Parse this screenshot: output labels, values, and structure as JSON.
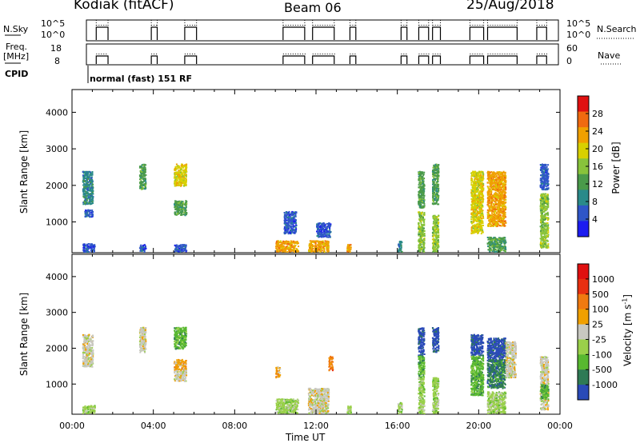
{
  "header": {
    "radar": "Kodiak (fitACF)",
    "beam": "Beam 06",
    "date": "25/Aug/2018"
  },
  "strips": {
    "nsky": {
      "label": "N.Sky",
      "ticks_left": [
        "10^5",
        "10^0"
      ],
      "ticks_right": [
        "10^5",
        "10^0"
      ],
      "right_label": "N.Search"
    },
    "freq": {
      "label_line1": "Freq.",
      "label_line2": "[MHz]",
      "ticks_left": [
        "18",
        "8"
      ],
      "ticks_right": [
        "60",
        "0"
      ],
      "right_label": "Nave"
    },
    "cpid": {
      "label": "CPID",
      "value": "normal (fast) 151 RF"
    }
  },
  "chart_data": [
    {
      "type": "heatmap",
      "name": "power",
      "ylabel": "Slant Range [km]",
      "yticks": [
        "1000",
        "2000",
        "3000",
        "4000"
      ],
      "ylim": [
        180,
        4600
      ],
      "xlim": [
        0,
        24
      ],
      "colorbar": {
        "title": "Power [dB]",
        "ticks": [
          "4",
          "8",
          "12",
          "16",
          "20",
          "24",
          "28"
        ],
        "range": [
          0,
          32
        ],
        "colors": [
          "#1c1cf0",
          "#2f56c8",
          "#2a8a8a",
          "#4a9a4a",
          "#88c33b",
          "#d8d000",
          "#f0a000",
          "#f06a10",
          "#e01010"
        ]
      },
      "blobs": [
        {
          "x": [
            0.5,
            1.0
          ],
          "y": [
            1500,
            2400
          ],
          "level": 2
        },
        {
          "x": [
            0.6,
            1.0
          ],
          "y": [
            1150,
            1350
          ],
          "level": 1
        },
        {
          "x": [
            0.5,
            1.1
          ],
          "y": [
            200,
            420
          ],
          "level": 1
        },
        {
          "x": [
            3.3,
            3.6
          ],
          "y": [
            1900,
            2600
          ],
          "level": 3
        },
        {
          "x": [
            3.3,
            3.6
          ],
          "y": [
            200,
            400
          ],
          "level": 1
        },
        {
          "x": [
            5.0,
            5.6
          ],
          "y": [
            2000,
            2600
          ],
          "level": 5
        },
        {
          "x": [
            5.0,
            5.6
          ],
          "y": [
            1200,
            1600
          ],
          "level": 3
        },
        {
          "x": [
            5.0,
            5.6
          ],
          "y": [
            200,
            400
          ],
          "level": 1
        },
        {
          "x": [
            10.0,
            11.1
          ],
          "y": [
            200,
            500
          ],
          "level": 6
        },
        {
          "x": [
            10.4,
            11.0
          ],
          "y": [
            700,
            1300
          ],
          "level": 1
        },
        {
          "x": [
            11.6,
            12.6
          ],
          "y": [
            200,
            500
          ],
          "level": 6
        },
        {
          "x": [
            12.0,
            12.7
          ],
          "y": [
            600,
            1000
          ],
          "level": 1
        },
        {
          "x": [
            13.5,
            13.7
          ],
          "y": [
            200,
            400
          ],
          "level": 6
        },
        {
          "x": [
            16.0,
            16.2
          ],
          "y": [
            200,
            500
          ],
          "level": 2
        },
        {
          "x": [
            17.0,
            17.3
          ],
          "y": [
            1400,
            2400
          ],
          "level": 3
        },
        {
          "x": [
            17.0,
            17.3
          ],
          "y": [
            200,
            1300
          ],
          "level": 4
        },
        {
          "x": [
            17.7,
            18.0
          ],
          "y": [
            1500,
            2600
          ],
          "level": 3
        },
        {
          "x": [
            17.7,
            18.0
          ],
          "y": [
            200,
            1200
          ],
          "level": 4
        },
        {
          "x": [
            19.6,
            20.2
          ],
          "y": [
            700,
            2400
          ],
          "level": 5
        },
        {
          "x": [
            20.4,
            21.3
          ],
          "y": [
            900,
            2400
          ],
          "level": 6
        },
        {
          "x": [
            20.4,
            21.3
          ],
          "y": [
            200,
            600
          ],
          "level": 3
        },
        {
          "x": [
            23.0,
            23.4
          ],
          "y": [
            300,
            1800
          ],
          "level": 4
        },
        {
          "x": [
            23.0,
            23.4
          ],
          "y": [
            1900,
            2600
          ],
          "level": 1
        }
      ]
    },
    {
      "type": "heatmap",
      "name": "velocity",
      "ylabel": "Slant Range [km]",
      "yticks": [
        "1000",
        "2000",
        "3000",
        "4000"
      ],
      "ylim": [
        180,
        4600
      ],
      "xlim": [
        0,
        24
      ],
      "colorbar": {
        "title": "Velocity [m s^-1]",
        "ticks": [
          "1000",
          "500",
          "100",
          "25",
          "-25",
          "-100",
          "-500",
          "-1000"
        ],
        "colors": [
          "#2a4ab8",
          "#2f7a55",
          "#58b830",
          "#9ad04a",
          "#c8c8c0",
          "#f0a000",
          "#f07a10",
          "#e83010",
          "#e01010"
        ]
      },
      "xticks": [
        "00:00",
        "04:00",
        "08:00",
        "12:00",
        "16:00",
        "20:00",
        "00:00"
      ],
      "xlabel": "Time UT",
      "blobs": [
        {
          "x": [
            0.5,
            1.0
          ],
          "y": [
            1500,
            2400
          ],
          "level": 4
        },
        {
          "x": [
            0.5,
            1.1
          ],
          "y": [
            200,
            420
          ],
          "level": 3
        },
        {
          "x": [
            3.3,
            3.6
          ],
          "y": [
            1900,
            2600
          ],
          "level": 4
        },
        {
          "x": [
            5.0,
            5.6
          ],
          "y": [
            2000,
            2600
          ],
          "level": 2
        },
        {
          "x": [
            5.0,
            5.6
          ],
          "y": [
            1400,
            1700
          ],
          "level": 5
        },
        {
          "x": [
            5.0,
            5.6
          ],
          "y": [
            1100,
            1400
          ],
          "level": 4
        },
        {
          "x": [
            10.0,
            11.1
          ],
          "y": [
            200,
            600
          ],
          "level": 3
        },
        {
          "x": [
            10.0,
            10.2
          ],
          "y": [
            1200,
            1500
          ],
          "level": 5
        },
        {
          "x": [
            11.6,
            12.6
          ],
          "y": [
            200,
            900
          ],
          "level": 4
        },
        {
          "x": [
            12.6,
            12.8
          ],
          "y": [
            1400,
            1800
          ],
          "level": 6
        },
        {
          "x": [
            13.5,
            13.7
          ],
          "y": [
            200,
            400
          ],
          "level": 3
        },
        {
          "x": [
            16.0,
            16.2
          ],
          "y": [
            200,
            500
          ],
          "level": 3
        },
        {
          "x": [
            17.0,
            17.3
          ],
          "y": [
            1800,
            2600
          ],
          "level": 0
        },
        {
          "x": [
            17.0,
            17.3
          ],
          "y": [
            1200,
            1800
          ],
          "level": 2
        },
        {
          "x": [
            17.0,
            17.3
          ],
          "y": [
            200,
            1200
          ],
          "level": 3
        },
        {
          "x": [
            17.7,
            18.0
          ],
          "y": [
            1900,
            2600
          ],
          "level": 0
        },
        {
          "x": [
            17.7,
            18.0
          ],
          "y": [
            200,
            1200
          ],
          "level": 3
        },
        {
          "x": [
            19.6,
            20.2
          ],
          "y": [
            1800,
            2400
          ],
          "level": 0
        },
        {
          "x": [
            19.6,
            20.2
          ],
          "y": [
            700,
            1800
          ],
          "level": 2
        },
        {
          "x": [
            20.4,
            21.3
          ],
          "y": [
            1700,
            2300
          ],
          "level": 0
        },
        {
          "x": [
            20.4,
            21.3
          ],
          "y": [
            900,
            1700
          ],
          "level": 1
        },
        {
          "x": [
            20.4,
            21.3
          ],
          "y": [
            200,
            800
          ],
          "level": 3
        },
        {
          "x": [
            21.3,
            21.8
          ],
          "y": [
            1200,
            2200
          ],
          "level": 4
        },
        {
          "x": [
            23.0,
            23.4
          ],
          "y": [
            300,
            1800
          ],
          "level": 4
        },
        {
          "x": [
            23.0,
            23.4
          ],
          "y": [
            600,
            1000
          ],
          "level": 2
        }
      ]
    }
  ],
  "segments": [
    [
      0.5,
      1.1
    ],
    [
      3.3,
      3.6
    ],
    [
      5.0,
      5.6
    ],
    [
      10.0,
      11.1
    ],
    [
      11.5,
      12.6
    ],
    [
      13.4,
      13.7
    ],
    [
      16.0,
      16.3
    ],
    [
      16.9,
      17.4
    ],
    [
      17.6,
      18.0
    ],
    [
      19.5,
      20.2
    ],
    [
      20.4,
      21.9
    ],
    [
      22.9,
      23.4
    ]
  ]
}
